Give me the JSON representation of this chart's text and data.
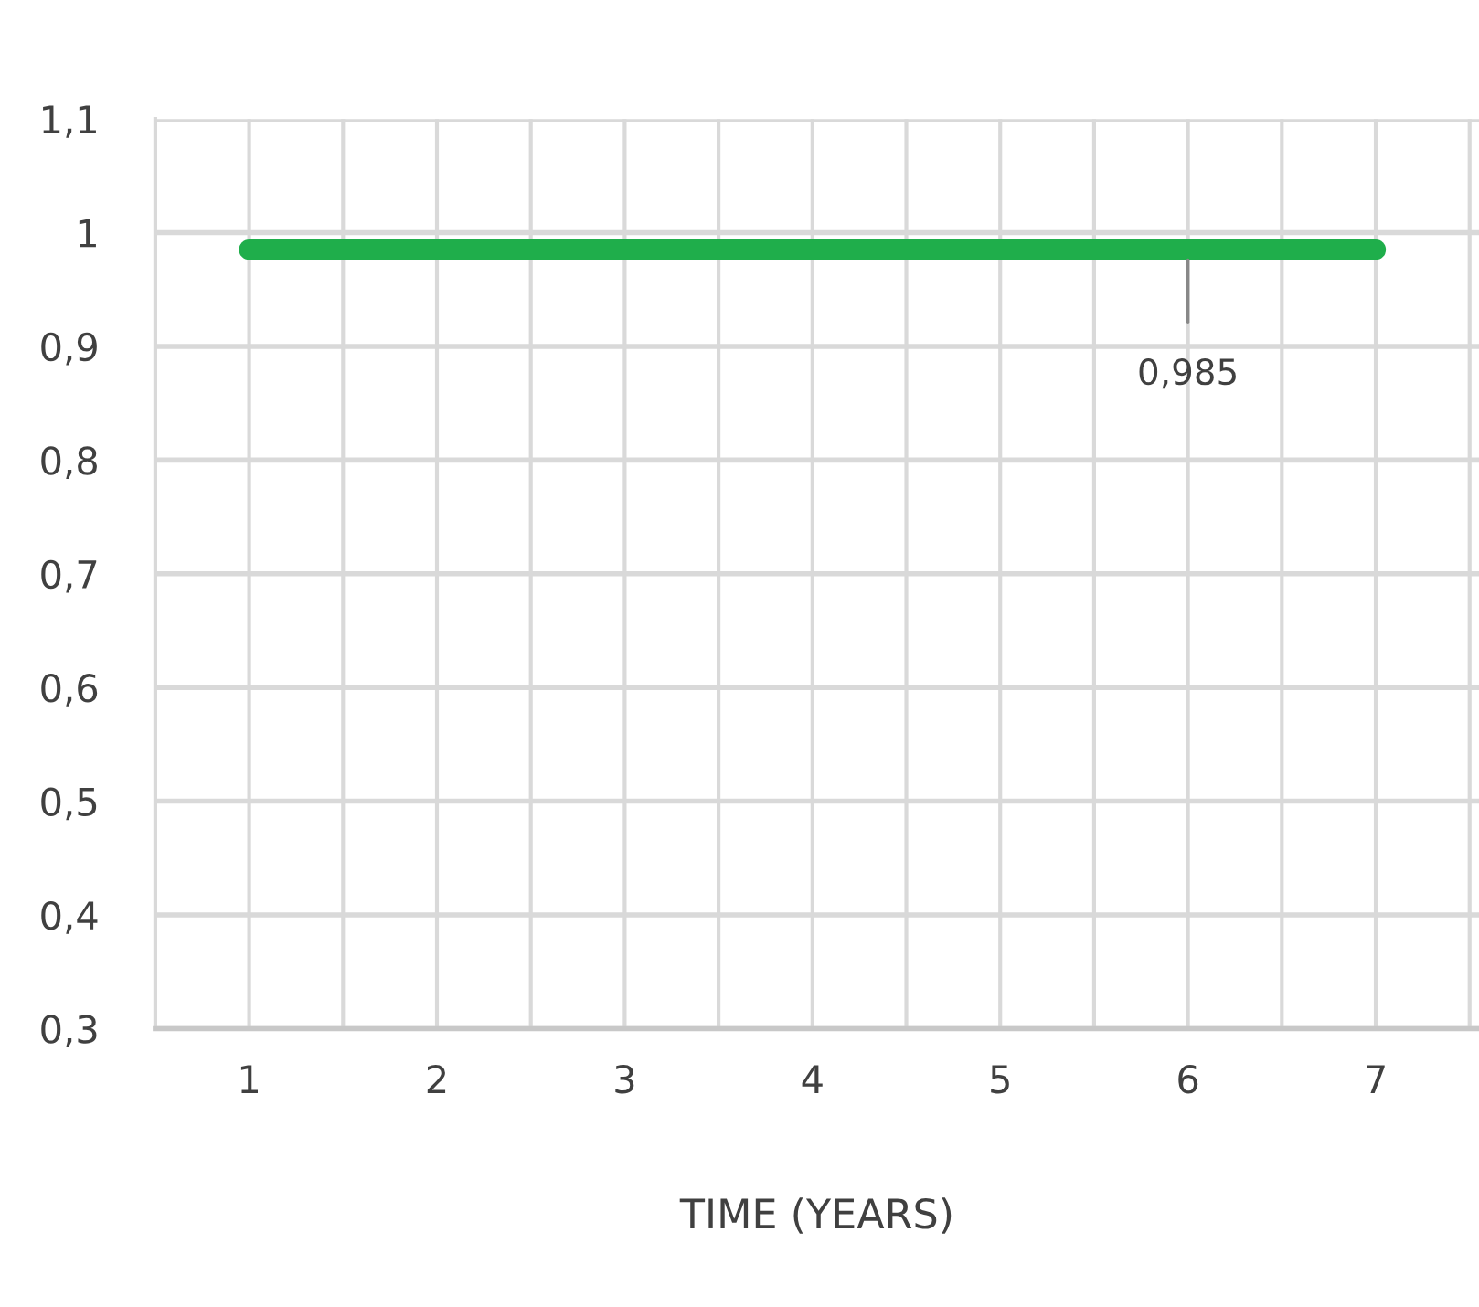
{
  "chart_data": {
    "type": "line",
    "xlabel": "TIME (YEARS)",
    "categories": [
      "1",
      "2",
      "3",
      "4",
      "5",
      "6",
      "7"
    ],
    "series": [
      {
        "color": "#1fae4b",
        "values": [
          0.985,
          0.985,
          0.985,
          0.985,
          0.985,
          0.985,
          0.985
        ],
        "value_labels": [
          null,
          null,
          null,
          null,
          null,
          "0,985",
          null
        ]
      }
    ],
    "ylim": [
      0.3,
      1.1
    ],
    "yticks": [
      {
        "value": 0.3,
        "label": "0,3"
      },
      {
        "value": 0.4,
        "label": "0,4"
      },
      {
        "value": 0.5,
        "label": "0,5"
      },
      {
        "value": 0.6,
        "label": "0,6"
      },
      {
        "value": 0.7,
        "label": "0,7"
      },
      {
        "value": 0.8,
        "label": "0,8"
      },
      {
        "value": 0.9,
        "label": "0,9"
      },
      {
        "value": 1,
        "label": "1"
      },
      {
        "value": 1.1,
        "label": "1,1"
      }
    ],
    "grid": true,
    "line_style": "solid",
    "legend": false
  }
}
